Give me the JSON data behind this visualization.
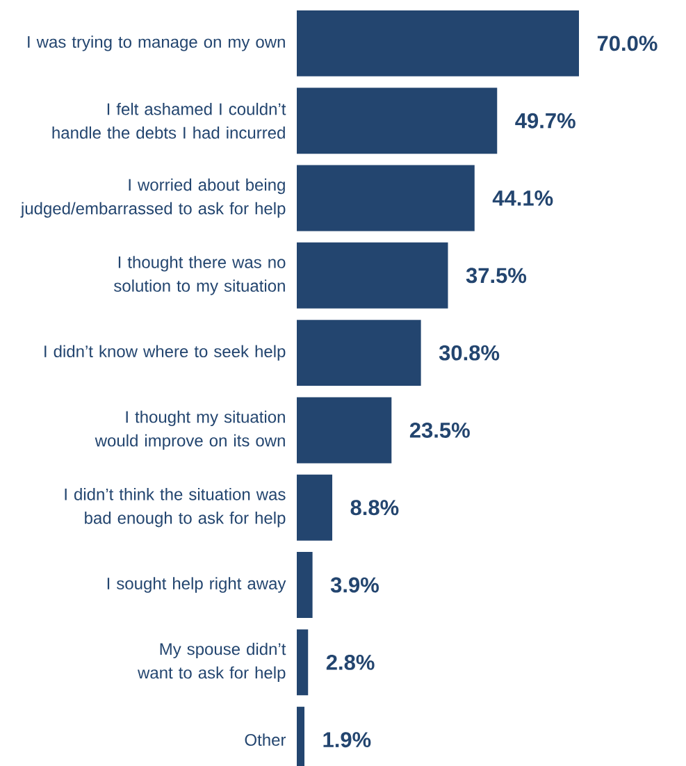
{
  "chart_data": {
    "type": "bar",
    "orientation": "horizontal",
    "color": "#23456f",
    "categories": [
      "I was trying to manage on my own",
      "I felt ashamed I couldn’t handle the debts I had incurred",
      "I worried about being judged/embarrassed to ask for help",
      "I thought there was no solution to my situation",
      "I didn’t know where to seek help",
      "I thought my situation would improve on its own",
      "I didn’t think the situation was bad enough to ask for help",
      "I sought help right away",
      "My spouse didn’t want to ask for help",
      "Other"
    ],
    "values": [
      70.0,
      49.7,
      44.1,
      37.5,
      30.8,
      23.5,
      8.8,
      3.9,
      2.8,
      1.9
    ],
    "value_labels": [
      "70.0%",
      "49.7%",
      "44.1%",
      "37.5%",
      "30.8%",
      "23.5%",
      "8.8%",
      "3.9%",
      "2.8%",
      "1.9%"
    ]
  }
}
